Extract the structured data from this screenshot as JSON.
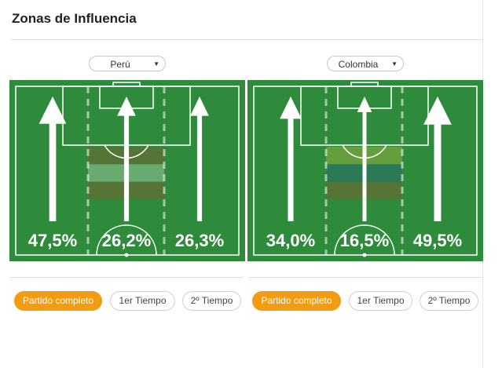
{
  "widget": {
    "title": "Zonas de Influencia"
  },
  "teams": [
    {
      "name": "Perú",
      "zones": [
        {
          "label": "47,5%",
          "value": 47.5
        },
        {
          "label": "26,2%",
          "value": 26.2
        },
        {
          "label": "26,3%",
          "value": 26.3
        }
      ],
      "periods": [
        "Partido completo",
        "1er Tiempo",
        "2º Tiempo"
      ],
      "active_period": "Partido completo",
      "flag_colors": [
        "#c0392b",
        "#ffffff",
        "#c0392b"
      ]
    },
    {
      "name": "Colombia",
      "zones": [
        {
          "label": "34,0%",
          "value": 34.0
        },
        {
          "label": "16,5%",
          "value": 16.5
        },
        {
          "label": "49,5%",
          "value": 49.5
        }
      ],
      "periods": [
        "Partido completo",
        "1er Tiempo",
        "2º Tiempo"
      ],
      "active_period": "Partido completo",
      "flag_colors": [
        "#f4d03f",
        "#1f4fa3",
        "#c0392b"
      ]
    }
  ],
  "colors": {
    "pitch": "#2e8b3b",
    "lines": "#ffffff",
    "accent": "#f39c12"
  }
}
